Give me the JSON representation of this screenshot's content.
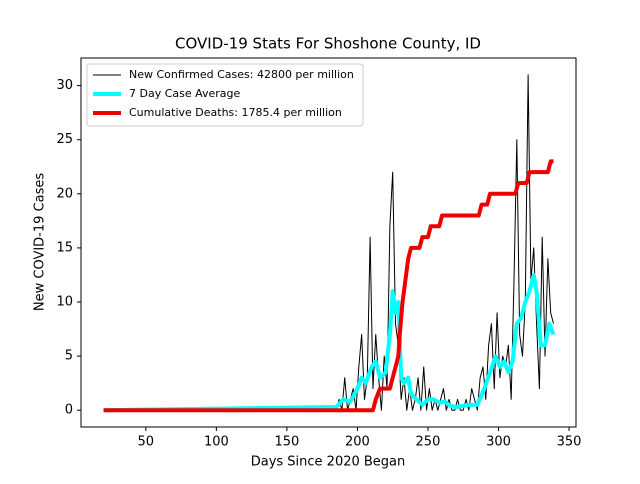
{
  "chart_data": {
    "type": "line",
    "title": "COVID-19 Stats For Shoshone County, ID",
    "xlabel": "Days Since 2020 Began",
    "ylabel": "New COVID-19 Cases",
    "xlim": [
      4.05,
      354.95
    ],
    "ylim": [
      -1.55,
      32.55
    ],
    "xticks": [
      50,
      100,
      150,
      200,
      250,
      300,
      350
    ],
    "yticks": [
      0,
      5,
      10,
      15,
      20,
      25,
      30
    ],
    "grid": false,
    "legend": "upper left",
    "series": [
      {
        "name": "New Confirmed Cases: 42800 per million",
        "color": "#000000",
        "width": 1,
        "x": [
          20,
          185,
          187,
          189,
          191,
          193,
          195,
          197,
          199,
          201,
          203,
          205,
          207,
          209,
          211,
          213,
          215,
          217,
          219,
          221,
          223,
          225,
          227,
          229,
          231,
          233,
          235,
          237,
          239,
          241,
          243,
          245,
          247,
          249,
          251,
          253,
          255,
          257,
          259,
          261,
          263,
          265,
          267,
          269,
          271,
          273,
          275,
          277,
          279,
          281,
          283,
          285,
          287,
          289,
          291,
          293,
          295,
          297,
          299,
          301,
          303,
          305,
          307,
          309,
          311,
          313,
          315,
          317,
          319,
          321,
          323,
          325,
          327,
          329,
          331,
          333,
          335,
          337,
          339
        ],
        "values": [
          0,
          0,
          1,
          0,
          3,
          0,
          1,
          2,
          0,
          4,
          7,
          1,
          3,
          16,
          2,
          7,
          3,
          0,
          5,
          2,
          17,
          22,
          8,
          6,
          1,
          3,
          0,
          2,
          0,
          1,
          3,
          0,
          4,
          0,
          2,
          0,
          1,
          0,
          1,
          2,
          0,
          1,
          0,
          0,
          1,
          0,
          0,
          1,
          0,
          2,
          1,
          0,
          3,
          4,
          1,
          6,
          8,
          2,
          9,
          3,
          5,
          4,
          6,
          1,
          12,
          25,
          7,
          5,
          10,
          31,
          12,
          15,
          8,
          2,
          16,
          5,
          14,
          9,
          8
        ]
      },
      {
        "name": "7 Day Case Average",
        "color": "#00ffff",
        "width": 4,
        "x": [
          20,
          185,
          190,
          195,
          200,
          203,
          206,
          210,
          213,
          216,
          220,
          223,
          225,
          227,
          229,
          231,
          233,
          236,
          238,
          242,
          246,
          250,
          254,
          258,
          262,
          266,
          270,
          275,
          280,
          285,
          290,
          294,
          298,
          301,
          304,
          307,
          310,
          313,
          316,
          319,
          322,
          325,
          327,
          330,
          333,
          336,
          339
        ],
        "values": [
          0,
          0.3,
          1,
          0.8,
          2,
          3,
          2.5,
          4,
          4.5,
          3,
          3.5,
          7,
          11,
          9,
          10,
          3,
          2.5,
          3,
          1.5,
          1,
          0.5,
          1,
          1,
          0.7,
          0.8,
          0.4,
          0.3,
          0.4,
          0.5,
          0.5,
          2,
          3.5,
          5,
          4,
          4.5,
          3.5,
          4.5,
          8,
          8.5,
          10,
          11,
          12.5,
          11,
          6,
          6,
          8,
          7
        ]
      },
      {
        "name": "Cumulative Deaths: 1785.4 per million",
        "color": "#ee0000",
        "width": 4,
        "x": [
          20,
          211,
          213,
          216,
          223,
          225,
          227,
          229,
          230,
          232,
          234,
          236,
          238,
          244,
          246,
          250,
          252,
          258,
          260,
          286,
          288,
          292,
          294,
          312,
          314,
          320,
          322,
          335,
          337,
          339
        ],
        "values": [
          0,
          0,
          1,
          2,
          2,
          3,
          4,
          5,
          7,
          10,
          12,
          14,
          15,
          15,
          16,
          16,
          17,
          17,
          18,
          18,
          19,
          19,
          20,
          20,
          21,
          21,
          22,
          22,
          23,
          23
        ]
      }
    ]
  }
}
